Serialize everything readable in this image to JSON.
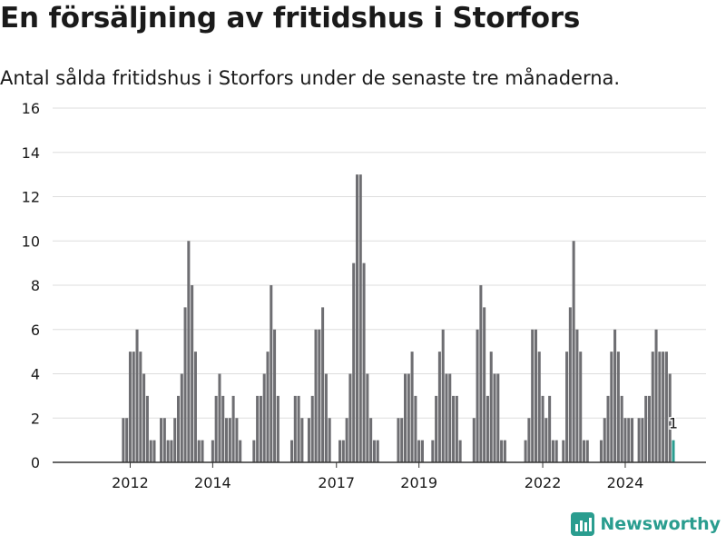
{
  "header": {
    "title": "En försäljning av fritidshus i Storfors",
    "subtitle": "Antal sålda fritidshus i Storfors under de senaste tre månaderna."
  },
  "brand": {
    "name": "Newsworthy"
  },
  "colors": {
    "bar": "#6e6e72",
    "highlight": "#2a9d8f",
    "grid": "#dddddd",
    "axis": "#333333",
    "text": "#1a1a1a"
  },
  "chart_data": {
    "type": "bar",
    "title": "En försäljning av fritidshus i Storfors",
    "subtitle": "Antal sålda fritidshus i Storfors under de senaste tre månaderna.",
    "xlabel": "",
    "ylabel": "",
    "ylim": [
      0,
      16
    ],
    "yticks": [
      0,
      2,
      4,
      6,
      8,
      10,
      12,
      14,
      16
    ],
    "x_start": "2011-01",
    "x_end": "2025-03",
    "xticks": [
      {
        "label": "2012",
        "month": "2012-01"
      },
      {
        "label": "2014",
        "month": "2014-01"
      },
      {
        "label": "2017",
        "month": "2017-01"
      },
      {
        "label": "2019",
        "month": "2019-01"
      },
      {
        "label": "2022",
        "month": "2022-01"
      },
      {
        "label": "2024",
        "month": "2024-01"
      }
    ],
    "grid": true,
    "highlight_label": "1",
    "series": [
      {
        "months": [
          "2011-01",
          "2011-02",
          "2011-03",
          "2011-04",
          "2011-05",
          "2011-06",
          "2011-07",
          "2011-08",
          "2011-09",
          "2011-10",
          "2011-11",
          "2011-12",
          "2012-01",
          "2012-02",
          "2012-03",
          "2012-04",
          "2012-05",
          "2012-06",
          "2012-07",
          "2012-08",
          "2012-09",
          "2012-10",
          "2012-11",
          "2012-12",
          "2013-01",
          "2013-02",
          "2013-03",
          "2013-04",
          "2013-05",
          "2013-06",
          "2013-07",
          "2013-08",
          "2013-09",
          "2013-10",
          "2013-11",
          "2013-12",
          "2014-01",
          "2014-02",
          "2014-03",
          "2014-04",
          "2014-05",
          "2014-06",
          "2014-07",
          "2014-08",
          "2014-09",
          "2014-10",
          "2014-11",
          "2014-12",
          "2015-01",
          "2015-02",
          "2015-03",
          "2015-04",
          "2015-05",
          "2015-06",
          "2015-07",
          "2015-08",
          "2015-09",
          "2015-10",
          "2015-11",
          "2015-12",
          "2016-01",
          "2016-02",
          "2016-03",
          "2016-04",
          "2016-05",
          "2016-06",
          "2016-07",
          "2016-08",
          "2016-09",
          "2016-10",
          "2016-11",
          "2016-12",
          "2017-01",
          "2017-02",
          "2017-03",
          "2017-04",
          "2017-05",
          "2017-06",
          "2017-07",
          "2017-08",
          "2017-09",
          "2017-10",
          "2017-11",
          "2017-12",
          "2018-01",
          "2018-02",
          "2018-03",
          "2018-04",
          "2018-05",
          "2018-06",
          "2018-07",
          "2018-08",
          "2018-09",
          "2018-10",
          "2018-11",
          "2018-12",
          "2019-01",
          "2019-02",
          "2019-03",
          "2019-04",
          "2019-05",
          "2019-06",
          "2019-07",
          "2019-08",
          "2019-09",
          "2019-10",
          "2019-11",
          "2019-12",
          "2020-01",
          "2020-02",
          "2020-03",
          "2020-04",
          "2020-05",
          "2020-06",
          "2020-07",
          "2020-08",
          "2020-09",
          "2020-10",
          "2020-11",
          "2020-12",
          "2021-01",
          "2021-02",
          "2021-03",
          "2021-04",
          "2021-05",
          "2021-06",
          "2021-07",
          "2021-08",
          "2021-09",
          "2021-10",
          "2021-11",
          "2021-12",
          "2022-01",
          "2022-02",
          "2022-03",
          "2022-04",
          "2022-05",
          "2022-06",
          "2022-07",
          "2022-08",
          "2022-09",
          "2022-10",
          "2022-11",
          "2022-12",
          "2023-01",
          "2023-02",
          "2023-03",
          "2023-04",
          "2023-05",
          "2023-06",
          "2023-07",
          "2023-08",
          "2023-09",
          "2023-10",
          "2023-11",
          "2023-12",
          "2024-01",
          "2024-02",
          "2024-03",
          "2024-04",
          "2024-05",
          "2024-06",
          "2024-07",
          "2024-08",
          "2024-09",
          "2024-10",
          "2024-11",
          "2024-12",
          "2025-01",
          "2025-02",
          "2025-03"
        ],
        "values": [
          0,
          0,
          0,
          0,
          0,
          0,
          0,
          0,
          0,
          0,
          2,
          2,
          5,
          5,
          6,
          5,
          4,
          3,
          1,
          1,
          0,
          2,
          2,
          1,
          1,
          2,
          3,
          4,
          7,
          10,
          8,
          5,
          1,
          1,
          0,
          0,
          1,
          3,
          4,
          3,
          2,
          2,
          3,
          2,
          1,
          0,
          0,
          0,
          1,
          3,
          3,
          4,
          5,
          8,
          6,
          3,
          0,
          0,
          0,
          1,
          3,
          3,
          2,
          0,
          2,
          3,
          6,
          6,
          7,
          4,
          2,
          0,
          0,
          1,
          1,
          2,
          4,
          9,
          13,
          13,
          9,
          4,
          2,
          1,
          1,
          0,
          0,
          0,
          0,
          0,
          2,
          2,
          4,
          4,
          5,
          3,
          1,
          1,
          0,
          0,
          1,
          3,
          5,
          6,
          4,
          4,
          3,
          3,
          1,
          0,
          0,
          0,
          2,
          6,
          8,
          7,
          3,
          5,
          4,
          4,
          1,
          1,
          0,
          0,
          0,
          0,
          0,
          1,
          2,
          6,
          6,
          5,
          3,
          2,
          3,
          1,
          1,
          0,
          1,
          5,
          7,
          10,
          6,
          5,
          1,
          1,
          0,
          0,
          0,
          1,
          2,
          3,
          5,
          6,
          5,
          3,
          2,
          2,
          2,
          0,
          2,
          2,
          3,
          3,
          5,
          6,
          5,
          5,
          5,
          4,
          1
        ]
      }
    ]
  }
}
